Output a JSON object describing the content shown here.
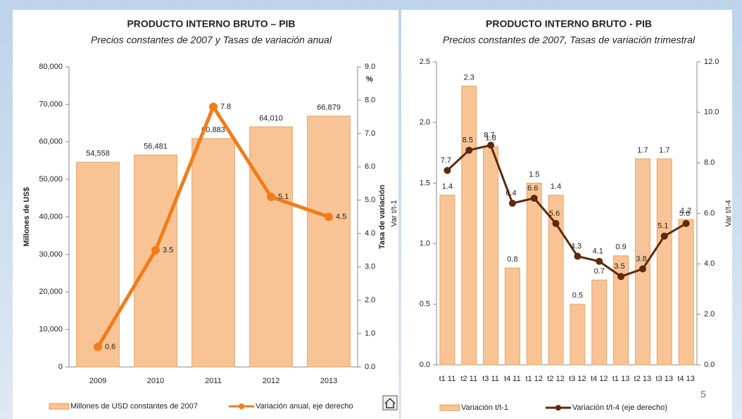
{
  "chart_data": [
    {
      "type": "combo",
      "title": "PRODUCTO INTERNO BRUTO – PIB",
      "subtitle": "Precios  constantes de 2007 y Tasas de variación anual",
      "y_label": "Millones de US$",
      "y2_label": "Tasa de variación",
      "y2_unit": "%",
      "categories": [
        "2009",
        "2010",
        "2011",
        "2012",
        "2013"
      ],
      "series": [
        {
          "name": "Millones de USD constantes de 2007",
          "type": "bar",
          "color": "#f9c495",
          "values": [
            54558,
            56481,
            60883,
            64010,
            66879
          ],
          "value_labels": [
            "54,558",
            "56,481",
            "60,883",
            "64,010",
            "66,879"
          ]
        },
        {
          "name": "Variación anual, eje derecho",
          "type": "line",
          "axis": "y2",
          "color": "#f07d1a",
          "values": [
            0.6,
            3.5,
            7.8,
            5.1,
            4.5
          ]
        }
      ],
      "ylim": [
        0,
        80000
      ],
      "yticks": [
        0,
        {
          "value": 10000,
          "label": "10,000"
        },
        {
          "value": 20000,
          "label": "20,000"
        },
        {
          "value": 30000,
          "label": "30,000"
        },
        {
          "value": 40000,
          "label": "40,000"
        },
        {
          "value": 50000,
          "label": "50,000"
        },
        {
          "value": 60000,
          "label": "60,000"
        },
        {
          "value": 70000,
          "label": "70,000"
        },
        {
          "value": 80000,
          "label": "80,000"
        }
      ],
      "y2lim": [
        0,
        9
      ],
      "y2ticks": [
        {
          "value": 0,
          "label": "0.0"
        },
        {
          "value": 1,
          "label": "1.0"
        },
        {
          "value": 2,
          "label": "2.0"
        },
        {
          "value": 3,
          "label": "3.0"
        },
        {
          "value": 4,
          "label": "4.0"
        },
        {
          "value": 5,
          "label": "5.0"
        },
        {
          "value": 6,
          "label": "6.0"
        },
        {
          "value": 7,
          "label": "7.0"
        },
        {
          "value": 8,
          "label": "8.0"
        },
        {
          "value": 9,
          "label": "9.0"
        }
      ],
      "legend": "bottom"
    },
    {
      "type": "combo",
      "title": "PRODUCTO INTERNO BRUTO - PIB",
      "subtitle": "Precios constantes de 2007, Tasas de variación trimestral",
      "y_label": "Var t/t-1",
      "y2_label": "Var t/t-4",
      "categories": [
        "t1 11",
        "t2 11",
        "t3 11",
        "t4 11",
        "t1 12",
        "t2 12",
        "t3 12",
        "t4 12",
        "t1 13",
        "t2 13",
        "t3 13",
        "t4 13"
      ],
      "series": [
        {
          "name": "Variación t/t-1",
          "type": "bar",
          "color": "#f9c495",
          "values": [
            1.4,
            2.3,
            1.8,
            0.8,
            1.5,
            1.4,
            0.5,
            0.7,
            0.9,
            1.7,
            1.7,
            1.2
          ]
        },
        {
          "name": "Variación t/t-4 (eje derecho)",
          "type": "line",
          "axis": "y2",
          "color": "#5c2a0c",
          "values": [
            7.7,
            8.5,
            8.7,
            6.4,
            6.6,
            5.6,
            4.3,
            4.1,
            3.5,
            3.8,
            5.1,
            5.6
          ]
        }
      ],
      "ylim": [
        0,
        2.5
      ],
      "yticks": [
        {
          "value": 0,
          "label": "0.0"
        },
        0.5,
        {
          "value": 1,
          "label": "1.0"
        },
        1.5,
        {
          "value": 2,
          "label": "2.0"
        },
        2.5
      ],
      "y2lim": [
        0,
        12
      ],
      "y2ticks": [
        {
          "value": 0,
          "label": "0.0"
        },
        {
          "value": 2,
          "label": "2.0"
        },
        {
          "value": 4,
          "label": "4.0"
        },
        {
          "value": 6,
          "label": "6.0"
        },
        {
          "value": 8,
          "label": "8.0"
        },
        {
          "value": 10,
          "label": "10.0"
        },
        {
          "value": 12,
          "label": "12.0"
        }
      ],
      "legend": "bottom"
    }
  ],
  "page_number": "5"
}
